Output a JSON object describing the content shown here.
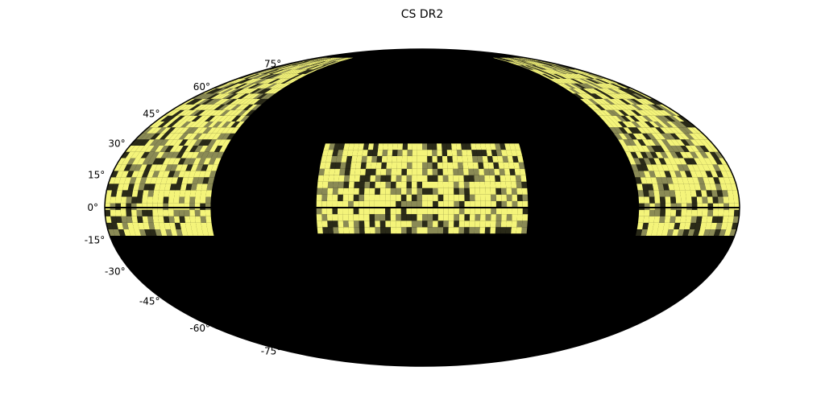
{
  "chart_data": {
    "type": "heatmap",
    "projection": "mollweide",
    "title": "CS DR2",
    "latitude_ticks": [
      75,
      60,
      45,
      30,
      15,
      0,
      -15,
      -30,
      -45,
      -60,
      -75
    ],
    "latitude_tick_labels": [
      "75°",
      "60°",
      "45°",
      "30°",
      "15°",
      "0°",
      "-15°",
      "-30°",
      "-45°",
      "-60°",
      "-75°"
    ],
    "colors": {
      "background": "#000000",
      "high": "#f4f47a",
      "mid": "#8a8a55",
      "low": "#2a2a18"
    },
    "coverage_regions": [
      {
        "lon_range": [
          -180,
          -125
        ],
        "lat_range": [
          -13,
          80
        ]
      },
      {
        "lon_range": [
          -60,
          60
        ],
        "lat_range": [
          -12,
          29
        ]
      },
      {
        "lon_range": [
          120,
          180
        ],
        "lat_range": [
          -13,
          80
        ]
      }
    ],
    "grid": false,
    "legend": "none"
  }
}
